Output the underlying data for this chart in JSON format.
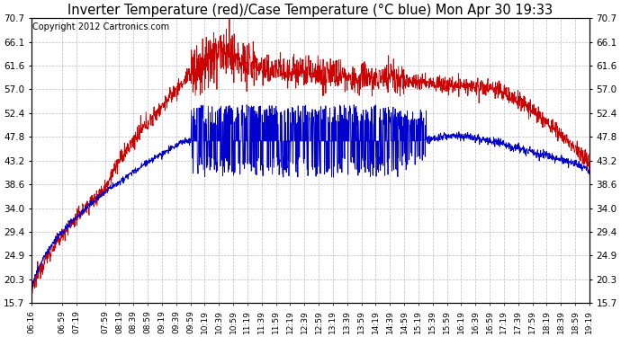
{
  "title": "Inverter Temperature (red)/Case Temperature (°C blue) Mon Apr 30 19:33",
  "copyright": "Copyright 2012 Cartronics.com",
  "yticks": [
    15.7,
    20.3,
    24.9,
    29.4,
    34.0,
    38.6,
    43.2,
    47.8,
    52.4,
    57.0,
    61.6,
    66.1,
    70.7
  ],
  "ymin": 15.7,
  "ymax": 70.7,
  "xtick_labels": [
    "06:16",
    "06:59",
    "07:19",
    "07:59",
    "08:19",
    "08:39",
    "08:59",
    "09:19",
    "09:39",
    "09:59",
    "10:19",
    "10:39",
    "10:59",
    "11:19",
    "11:39",
    "11:59",
    "12:19",
    "12:39",
    "12:59",
    "13:19",
    "13:39",
    "13:59",
    "14:19",
    "14:39",
    "14:59",
    "15:19",
    "15:39",
    "15:59",
    "16:19",
    "16:39",
    "16:59",
    "17:19",
    "17:39",
    "17:59",
    "18:19",
    "18:39",
    "18:59",
    "19:19"
  ],
  "bg_color": "#ffffff",
  "grid_color": "#bbbbbb",
  "red_color": "#cc0000",
  "blue_color": "#0000cc",
  "title_fontsize": 10.5,
  "copyright_fontsize": 7
}
